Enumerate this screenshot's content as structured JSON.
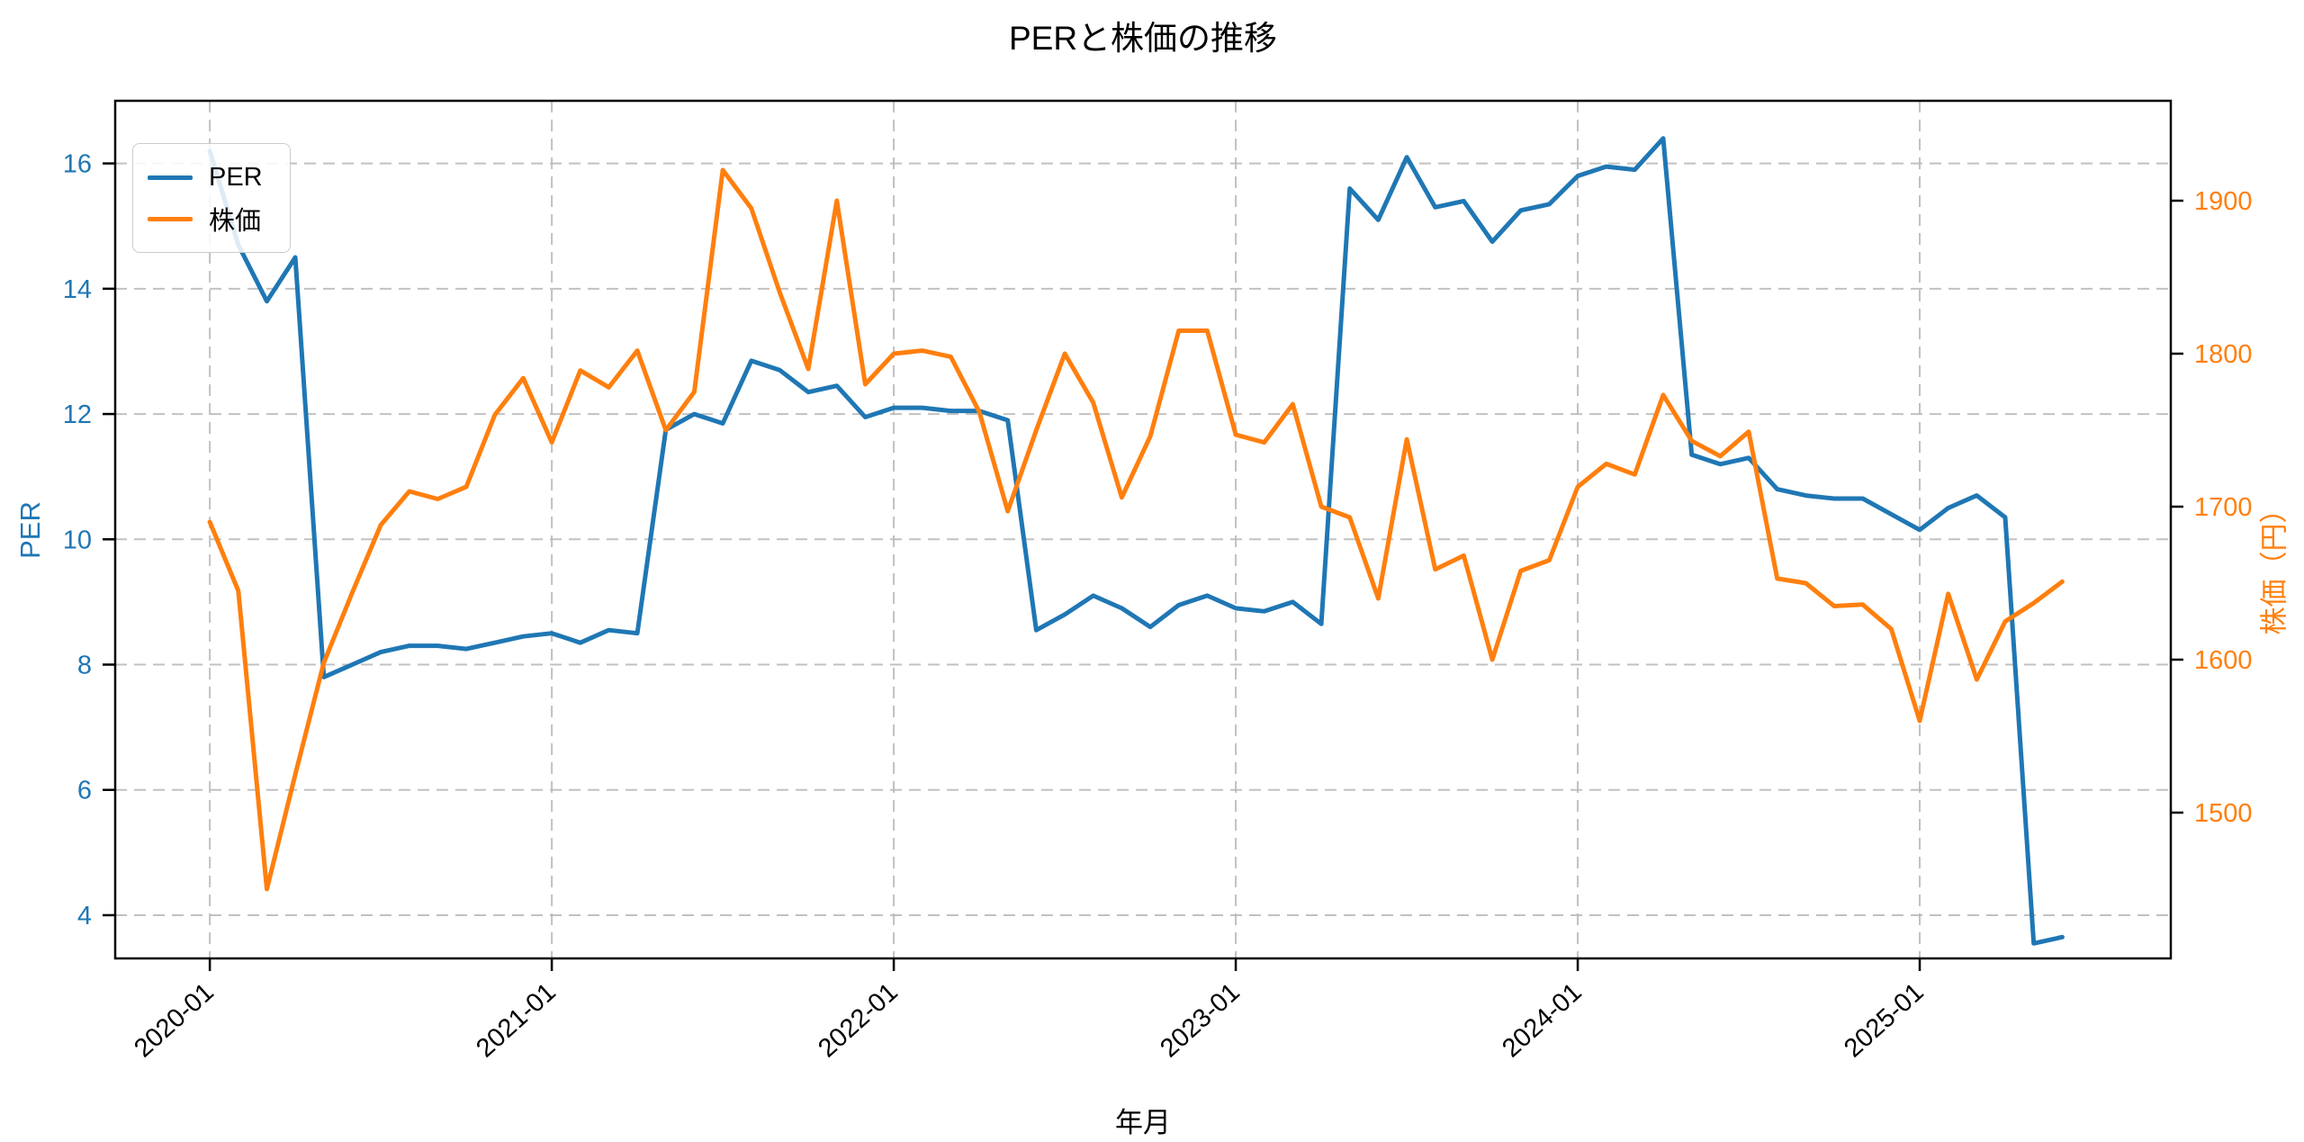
{
  "chart_data": {
    "type": "line",
    "title": "PERと株価の推移",
    "xlabel": "年月",
    "ylabel_left": "PER",
    "ylabel_right": "株価（円）",
    "legend": {
      "position": "upper left",
      "entries": [
        "PER",
        "株価"
      ]
    },
    "grid": true,
    "grid_style": "dashed",
    "colors": {
      "per": "#1f77b4",
      "price": "#ff7f0e",
      "grid": "#bbbbbb",
      "spine": "#000000"
    },
    "x_year_ticks": [
      "2020-01",
      "2021-01",
      "2022-01",
      "2023-01",
      "2024-01",
      "2025-01"
    ],
    "y_left_ticks": [
      4,
      6,
      8,
      10,
      12,
      14,
      16
    ],
    "y_right_ticks": [
      1500,
      1600,
      1700,
      1800,
      1900
    ],
    "xlim_months": [
      -3.32,
      68.81
    ],
    "ylim_left": [
      3.31,
      17.0
    ],
    "ylim_right": [
      1404.7,
      1965.3
    ],
    "categories": [
      "2020-01",
      "2020-02",
      "2020-03",
      "2020-04",
      "2020-05",
      "2020-06",
      "2020-07",
      "2020-08",
      "2020-09",
      "2020-10",
      "2020-11",
      "2020-12",
      "2021-01",
      "2021-02",
      "2021-03",
      "2021-04",
      "2021-05",
      "2021-06",
      "2021-07",
      "2021-08",
      "2021-09",
      "2021-10",
      "2021-11",
      "2021-12",
      "2022-01",
      "2022-02",
      "2022-03",
      "2022-04",
      "2022-05",
      "2022-06",
      "2022-07",
      "2022-08",
      "2022-09",
      "2022-10",
      "2022-11",
      "2022-12",
      "2023-01",
      "2023-02",
      "2023-03",
      "2023-04",
      "2023-05",
      "2023-06",
      "2023-07",
      "2023-08",
      "2023-09",
      "2023-10",
      "2023-11",
      "2023-12",
      "2024-01",
      "2024-02",
      "2024-03",
      "2024-04",
      "2024-05",
      "2024-06",
      "2024-07",
      "2024-08",
      "2024-09",
      "2024-10",
      "2024-11",
      "2024-12",
      "2025-01",
      "2025-02",
      "2025-03",
      "2025-04",
      "2025-05",
      "2025-06"
    ],
    "series": [
      {
        "name": "PER",
        "axis": "left",
        "color": "#1f77b4",
        "values": [
          16.2,
          14.7,
          13.8,
          14.5,
          7.8,
          8.0,
          8.2,
          8.3,
          8.3,
          8.25,
          8.35,
          8.45,
          8.5,
          8.35,
          8.55,
          8.5,
          11.75,
          12.0,
          11.85,
          12.85,
          12.7,
          12.35,
          12.45,
          11.95,
          12.1,
          12.1,
          12.05,
          12.05,
          11.9,
          8.55,
          8.8,
          9.1,
          8.9,
          8.6,
          8.95,
          9.1,
          8.9,
          8.85,
          9.0,
          8.65,
          15.6,
          15.1,
          16.1,
          15.3,
          15.4,
          14.75,
          15.25,
          15.35,
          15.8,
          15.95,
          15.9,
          16.4,
          11.35,
          11.2,
          11.3,
          10.8,
          10.7,
          10.65,
          10.65,
          10.4,
          10.15,
          10.5,
          10.7,
          10.35,
          3.55,
          3.65
        ]
      },
      {
        "name": "株価",
        "axis": "right",
        "color": "#ff7f0e",
        "values": [
          1690,
          1645,
          1450,
          1525,
          1598,
          1644,
          1688,
          1710,
          1705,
          1713,
          1760,
          1784,
          1742,
          1789,
          1778,
          1802,
          1750,
          1775,
          1920,
          1895,
          1840,
          1790,
          1900,
          1780,
          1800,
          1802,
          1798,
          1762,
          1697,
          1750,
          1800,
          1768,
          1706,
          1746,
          1815,
          1815,
          1747,
          1742,
          1767,
          1700,
          1693,
          1640,
          1744,
          1659,
          1668,
          1600,
          1658,
          1665,
          1713,
          1728,
          1721,
          1773,
          1743,
          1733,
          1749,
          1653,
          1650,
          1635,
          1636,
          1620,
          1560,
          1643,
          1587,
          1625,
          1637,
          1651
        ]
      }
    ]
  }
}
